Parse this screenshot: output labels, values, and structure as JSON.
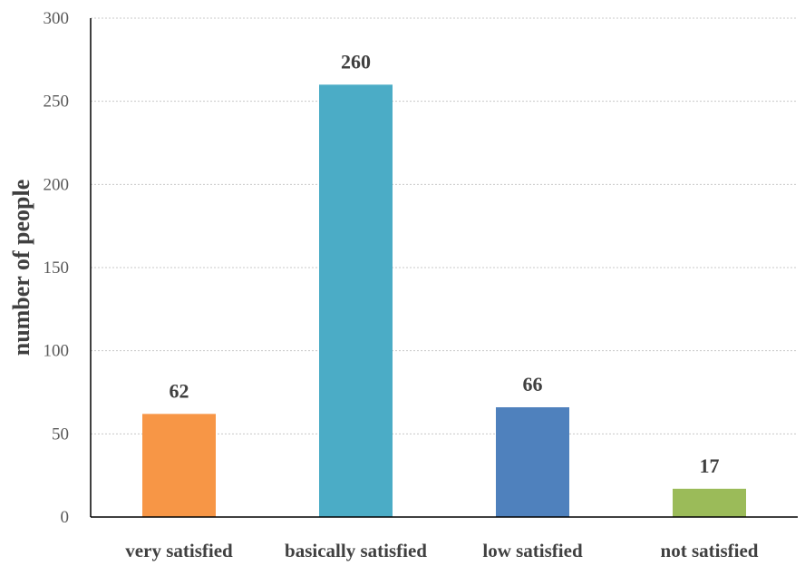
{
  "chart_data": {
    "type": "bar",
    "categories": [
      "very satisfied",
      "basically satisfied",
      "low satisfied",
      "not satisfied"
    ],
    "values": [
      62,
      260,
      66,
      17
    ],
    "data_labels": [
      "62",
      "260",
      "66",
      "17"
    ],
    "colors": [
      "#F79646",
      "#4BACC6",
      "#4F81BD",
      "#9BBB59"
    ],
    "title": "",
    "xlabel": "",
    "ylabel": "number of people",
    "ylim": [
      0,
      300
    ],
    "yticks": [
      0,
      50,
      100,
      150,
      200,
      250,
      300
    ],
    "ytick_labels": [
      "0",
      "50",
      "100",
      "150",
      "200",
      "250",
      "300"
    ],
    "grid": true,
    "legend": "none"
  }
}
